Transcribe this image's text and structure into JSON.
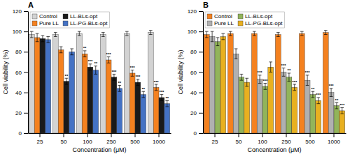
{
  "chart_data": [
    {
      "type": "bar",
      "title": "A",
      "categories": [
        "25",
        "50",
        "100",
        "250",
        "500",
        "1000"
      ],
      "series": [
        {
          "name": "Control",
          "color": "#d3d3d3",
          "values": [
            97,
            97,
            98,
            97,
            98,
            99
          ],
          "errors": [
            3,
            2,
            2,
            2,
            2,
            2
          ]
        },
        {
          "name": "Pure LL",
          "color": "#f4811f",
          "values": [
            94,
            82,
            78,
            72,
            59,
            45
          ],
          "errors": [
            4,
            3,
            3,
            3,
            3,
            3
          ],
          "annotations": [
            null,
            null,
            "**",
            "***",
            "***",
            "***"
          ]
        },
        {
          "name": "LL-BLs-opt",
          "color": "#1a1a1a",
          "values": [
            93,
            51,
            65,
            55,
            50,
            35
          ],
          "errors": [
            3,
            3,
            3,
            3,
            3,
            3
          ],
          "annotations": [
            null,
            "**",
            "***",
            "***",
            "***",
            "***"
          ]
        },
        {
          "name": "LL-PG-BLs-opt",
          "color": "#4472c4",
          "values": [
            92,
            80,
            62,
            44,
            38,
            29
          ],
          "errors": [
            3,
            3,
            4,
            3,
            3,
            3
          ],
          "annotations": [
            null,
            null,
            "**",
            "**",
            "**",
            "**"
          ]
        }
      ],
      "xlabel": "Concentration (μM)",
      "ylabel": "Cell viability (%)",
      "ylim": [
        0,
        120
      ],
      "yticks": [
        0,
        20,
        40,
        60,
        80,
        100,
        120
      ],
      "grid": false,
      "legend": "upper left"
    },
    {
      "type": "bar",
      "title": "B",
      "categories": [
        "25",
        "50",
        "100",
        "250",
        "500",
        "1000"
      ],
      "series": [
        {
          "name": "Control",
          "color": "#f4811f",
          "values": [
            97,
            98,
            98,
            97,
            98,
            99
          ],
          "errors": [
            3,
            2,
            2,
            2,
            2,
            2
          ]
        },
        {
          "name": "Pure LL",
          "color": "#b0b0b0",
          "values": [
            95,
            78,
            53,
            60,
            52,
            40
          ],
          "errors": [
            5,
            5,
            4,
            4,
            5,
            4
          ],
          "annotations": [
            null,
            null,
            "***",
            "***",
            "***",
            "***"
          ]
        },
        {
          "name": "LL-BLs-opt",
          "color": "#92b45a",
          "values": [
            90,
            55,
            46,
            55,
            38,
            27
          ],
          "errors": [
            4,
            3,
            3,
            4,
            3,
            3
          ],
          "annotations": [
            null,
            null,
            "***",
            "**",
            "**",
            "**"
          ]
        },
        {
          "name": "LL-PG-BLs-opt",
          "color": "#e8b020",
          "values": [
            95,
            50,
            65,
            45,
            32,
            22
          ],
          "errors": [
            3,
            4,
            5,
            3,
            3,
            3
          ],
          "annotations": [
            null,
            null,
            null,
            "***",
            "***",
            "***"
          ]
        }
      ],
      "xlabel": "Concentration (μM)",
      "ylabel": "Cell viability (%)",
      "ylim": [
        0,
        120
      ],
      "yticks": [
        0,
        20,
        40,
        60,
        80,
        100,
        120
      ],
      "grid": false,
      "legend": "upper left"
    }
  ]
}
